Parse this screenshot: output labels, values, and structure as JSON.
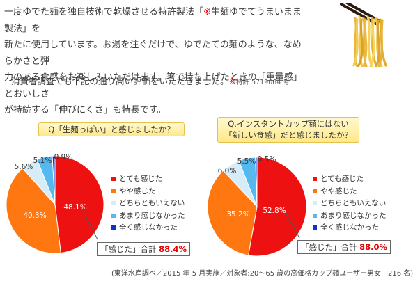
{
  "intro": {
    "line1": [
      {
        "t": "一度ゆでた麺を独自技術で乾燥させる特許製法「",
        "hl": false
      },
      {
        "t": "※",
        "hl": true
      },
      {
        "t": "生麺ゆでてうまいまま製法」を",
        "hl": false
      }
    ],
    "line2": "新たに使用しています。お湯を注ぐだけで、ゆでたての麺のような、なめらかさと弾",
    "line3": "力のある食感をお楽しみいただけます。箸で持ち上げたときの「重量感」とおいしさ",
    "line4": "が持続する「伸びにくさ」も特長です。",
    "survey_text": "消費者調査でも下記の通り高い評価をいただきました。",
    "patent_mark": "※",
    "patent_text": "特許 5719064 号"
  },
  "colors": {
    "very": "#ee1111",
    "somewhat": "#ff7711",
    "neutral": "#d6ecf8",
    "not_much": "#55b8ee",
    "not_at_all": "#1133cc",
    "highlight": "#e60000"
  },
  "chart_data": [
    {
      "type": "pie",
      "title": "Q「生麺っぽい」と感じましたか？",
      "categories": [
        "とても感じた",
        "やや感じた",
        "どちらともいえない",
        "あまり感じなかった",
        "全く感じなかった"
      ],
      "values": [
        48.1,
        40.3,
        5.6,
        5.1,
        0.9
      ],
      "value_labels": [
        "48.1%",
        "40.3%",
        "5.6%",
        "5.1%",
        "0.9%"
      ],
      "callout_label": "「感じた」合計",
      "callout_value": "88.4%",
      "legend_position": "right"
    },
    {
      "type": "pie",
      "title_line1": "Q.インスタントカップ麺にはない",
      "title_line2": "「新しい食感」だと感じましたか？",
      "categories": [
        "とても感じた",
        "やや感じた",
        "どちらともいえない",
        "あまり感じなかった",
        "全く感じなかった"
      ],
      "values": [
        52.8,
        35.2,
        6.0,
        5.5,
        0.5
      ],
      "value_labels": [
        "52.8%",
        "35.2%",
        "6.0%",
        "5.5%",
        "0.5%"
      ],
      "callout_label": "「感じた」合計",
      "callout_value": "88.0%",
      "legend_position": "right"
    }
  ],
  "footnote": "(東洋水産調べ／2015 年 5 月実施／対象者:20～65 歳の高価格カップ麺ユーザー男女　216 名)"
}
